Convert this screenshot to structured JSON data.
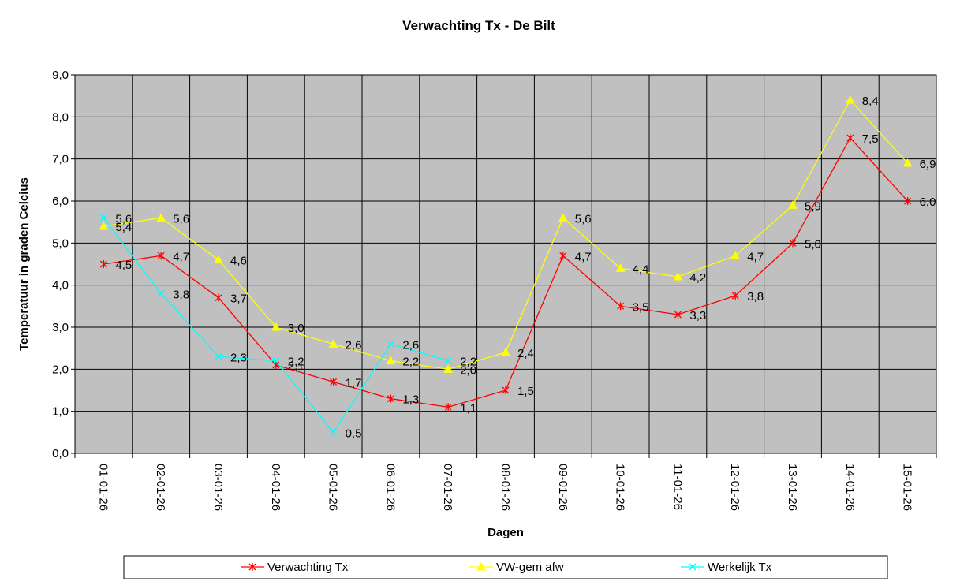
{
  "chart_data": {
    "type": "line",
    "title": "Verwachting Tx - De Bilt",
    "x_label": "Dagen",
    "y_label": "Temperatuur in graden Celcius",
    "categories": [
      "01-01-26",
      "02-01-26",
      "03-01-26",
      "04-01-26",
      "05-01-26",
      "06-01-26",
      "07-01-26",
      "08-01-26",
      "09-01-26",
      "10-01-26",
      "11-01-26",
      "12-01-26",
      "13-01-26",
      "14-01-26",
      "15-01-26"
    ],
    "series": [
      {
        "name": "Verwachting Tx",
        "color": "#ff0000",
        "marker": "star",
        "values": [
          4.5,
          4.7,
          3.7,
          2.1,
          1.7,
          1.3,
          1.1,
          1.5,
          4.7,
          3.5,
          3.3,
          3.75,
          5.0,
          7.5,
          6.0
        ],
        "value_labels": [
          "4,5",
          "4,7",
          "3,7",
          "2,1",
          "1,7",
          "1,3",
          "1,1",
          "1,5",
          "4,7",
          "3,5",
          "3,3",
          "3,8",
          "5,0",
          "7,5",
          "6,0"
        ]
      },
      {
        "name": "VW-gem afw",
        "color": "#ffff00",
        "marker": "triangle",
        "values": [
          5.4,
          5.6,
          4.6,
          3.0,
          2.6,
          2.2,
          2.0,
          2.4,
          5.6,
          4.4,
          4.2,
          4.7,
          5.9,
          8.4,
          6.9
        ],
        "value_labels": [
          "5,4",
          "5,6",
          "4,6",
          "3,0",
          "2,6",
          "2,2",
          "2,0",
          "2,4",
          "5,6",
          "4,4",
          "4,2",
          "4,7",
          "5,9",
          "8,4",
          "6,9"
        ]
      },
      {
        "name": "Werkelijk Tx",
        "color": "#00ffff",
        "marker": "x",
        "values": [
          5.6,
          3.8,
          2.3,
          2.2,
          0.5,
          2.6,
          2.2,
          null,
          null,
          null,
          null,
          null,
          null,
          null,
          null
        ],
        "value_labels": [
          "5,6",
          "3,8",
          "2,3",
          "2,2",
          "0,5",
          "2,6",
          "2,2",
          null,
          null,
          null,
          null,
          null,
          null,
          null,
          null
        ]
      }
    ],
    "ylim": [
      0,
      9
    ],
    "yticks": [
      {
        "value": 0,
        "label": "0,0"
      },
      {
        "value": 1,
        "label": "1,0"
      },
      {
        "value": 2,
        "label": "2,0"
      },
      {
        "value": 3,
        "label": "3,0"
      },
      {
        "value": 4,
        "label": "4,0"
      },
      {
        "value": 5,
        "label": "5,0"
      },
      {
        "value": 6,
        "label": "6,0"
      },
      {
        "value": 7,
        "label": "7,0"
      },
      {
        "value": 8,
        "label": "8,0"
      },
      {
        "value": 9,
        "label": "9,0"
      }
    ],
    "grid": true,
    "legend": "bottom"
  }
}
